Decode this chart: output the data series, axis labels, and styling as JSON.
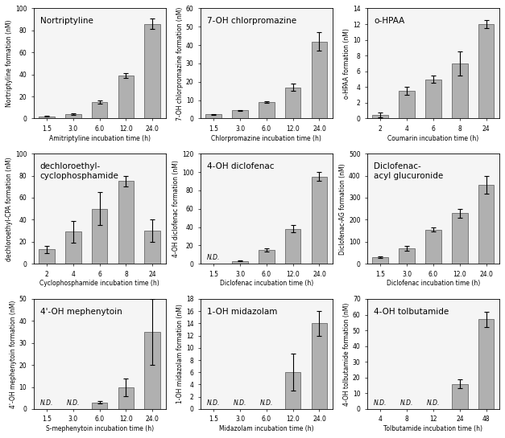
{
  "subplots": [
    {
      "title": "Nortriptyline",
      "ylabel": "Nortriptyline formation (nM)",
      "xlabel": "Amitriptyline incubation time (h)",
      "x_labels": [
        "1.5",
        "3.0",
        "6.0",
        "12.0",
        "24.0"
      ],
      "values": [
        2,
        4,
        15,
        39,
        86
      ],
      "errors": [
        0.5,
        0.5,
        1.5,
        2,
        5
      ],
      "nd_flags": [
        false,
        false,
        false,
        false,
        false
      ],
      "ylim": [
        0,
        100
      ],
      "yticks": [
        0,
        20,
        40,
        60,
        80,
        100
      ]
    },
    {
      "title": "7-OH chlorpromazine",
      "ylabel": "7-OH chlorpromazine formation (nM)",
      "xlabel": "Chlorpromazine incubation time (h)",
      "x_labels": [
        "1.5",
        "3.0",
        "6.0",
        "12.0",
        "24.0"
      ],
      "values": [
        2.2,
        4.5,
        9,
        17,
        42
      ],
      "errors": [
        0.2,
        0.3,
        0.5,
        2,
        5
      ],
      "nd_flags": [
        false,
        false,
        false,
        false,
        false
      ],
      "ylim": [
        0,
        60
      ],
      "yticks": [
        0,
        10,
        20,
        30,
        40,
        50,
        60
      ]
    },
    {
      "title": "o-HPAA",
      "ylabel": "o-HPAA formation (nM)",
      "xlabel": "Coumarin incubation time (h)",
      "x_labels": [
        "2",
        "4",
        "6",
        "8",
        "24"
      ],
      "values": [
        0.5,
        3.5,
        5,
        7,
        12
      ],
      "errors": [
        0.3,
        0.5,
        0.5,
        1.5,
        0.5
      ],
      "nd_flags": [
        false,
        false,
        false,
        false,
        false
      ],
      "ylim": [
        0,
        14
      ],
      "yticks": [
        0,
        2,
        4,
        6,
        8,
        10,
        12,
        14
      ]
    },
    {
      "title": "dechloroethyl-\ncyclophosphamide",
      "ylabel": "dechloroethyl-CPA formation (nM)",
      "xlabel": "Cyclophosphamide incubation time (h)",
      "x_labels": [
        "2",
        "4",
        "6",
        "8",
        "24"
      ],
      "values": [
        13,
        29,
        50,
        75,
        30
      ],
      "errors": [
        3,
        10,
        15,
        5,
        10
      ],
      "nd_flags": [
        false,
        false,
        false,
        false,
        false
      ],
      "ylim": [
        0,
        100
      ],
      "yticks": [
        0,
        20,
        40,
        60,
        80,
        100
      ]
    },
    {
      "title": "4-OH diclofenac",
      "ylabel": "4-OH diclofenac formation (nM)",
      "xlabel": "Diclofenac incubation time (h)",
      "x_labels": [
        "1.5",
        "3.0",
        "6.0",
        "12.0",
        "24.0"
      ],
      "values": [
        0,
        3,
        15,
        38,
        95
      ],
      "errors": [
        0,
        0.5,
        2,
        4,
        5
      ],
      "nd_flags": [
        true,
        false,
        false,
        false,
        false
      ],
      "ylim": [
        0,
        120
      ],
      "yticks": [
        0,
        20,
        40,
        60,
        80,
        100,
        120
      ]
    },
    {
      "title": "Diclofenac-\nacyl glucuronide",
      "ylabel": "Diclofenac-AG formation (nM)",
      "xlabel": "Diclofenac incubation time (h)",
      "x_labels": [
        "1.5",
        "3.0",
        "6.0",
        "12.0",
        "24.0"
      ],
      "values": [
        30,
        70,
        155,
        230,
        360
      ],
      "errors": [
        5,
        10,
        10,
        20,
        40
      ],
      "nd_flags": [
        false,
        false,
        false,
        false,
        false
      ],
      "ylim": [
        0,
        500
      ],
      "yticks": [
        0,
        100,
        200,
        300,
        400,
        500
      ]
    },
    {
      "title": "4'-OH mephenytoin",
      "ylabel": "4'-OH mephenytoin formation (nM)",
      "xlabel": "S-mephenytoin incubation time (h)",
      "x_labels": [
        "1.5",
        "3.0",
        "6.0",
        "12.0",
        "24.0"
      ],
      "values": [
        0,
        0,
        3,
        10,
        35
      ],
      "errors": [
        0,
        0,
        0.5,
        4,
        15
      ],
      "nd_flags": [
        true,
        true,
        false,
        false,
        false
      ],
      "ylim": [
        0,
        50
      ],
      "yticks": [
        0,
        10,
        20,
        30,
        40,
        50
      ]
    },
    {
      "title": "1-OH midazolam",
      "ylabel": "1-OH midazolam formation (nM)",
      "xlabel": "Midazolam incubation time (h)",
      "x_labels": [
        "1.5",
        "3.0",
        "6.0",
        "12.0",
        "24.0"
      ],
      "values": [
        0,
        0,
        0,
        6,
        14
      ],
      "errors": [
        0,
        0,
        0,
        3,
        2
      ],
      "nd_flags": [
        true,
        true,
        true,
        false,
        false
      ],
      "ylim": [
        0,
        18
      ],
      "yticks": [
        0,
        2,
        4,
        6,
        8,
        10,
        12,
        14,
        16,
        18
      ]
    },
    {
      "title": "4-OH tolbutamide",
      "ylabel": "4-OH tolbutamide formation (nM)",
      "xlabel": "Tolbutamide incubation time (h)",
      "x_labels": [
        "4",
        "8",
        "12",
        "24",
        "48"
      ],
      "values": [
        0,
        0,
        0,
        16,
        57
      ],
      "errors": [
        0,
        0,
        0,
        3,
        5
      ],
      "nd_flags": [
        true,
        true,
        true,
        false,
        false
      ],
      "ylim": [
        0,
        70
      ],
      "yticks": [
        0,
        10,
        20,
        30,
        40,
        50,
        60,
        70
      ]
    }
  ],
  "bar_color": "#b0b0b0",
  "bar_edge_color": "#555555",
  "background_color": "#f5f5f5",
  "fig_background": "#ffffff",
  "error_color": "black",
  "nd_fontsize": 5.5,
  "title_fontsize": 7.5,
  "label_fontsize": 5.5,
  "tick_fontsize": 5.5
}
